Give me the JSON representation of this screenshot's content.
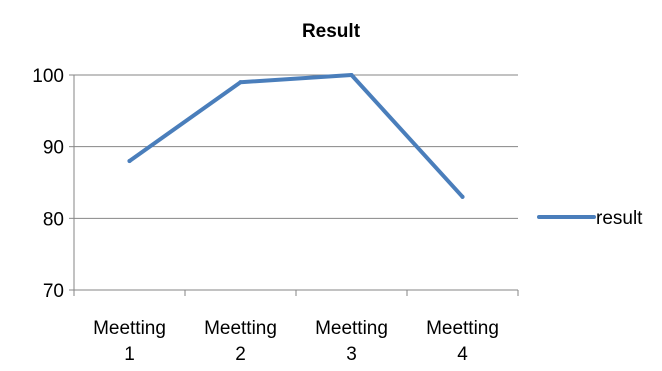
{
  "chart_data": {
    "type": "line",
    "title": "Result",
    "categories": [
      [
        "Meetting",
        "1"
      ],
      [
        "Meetting",
        "2"
      ],
      [
        "Meetting",
        "3"
      ],
      [
        "Meetting",
        "4"
      ]
    ],
    "series": [
      {
        "name": "result",
        "values": [
          88,
          99,
          100,
          83
        ],
        "color": "#4A7EBB"
      }
    ],
    "ylim": [
      70,
      100
    ],
    "yticks": [
      "70",
      "80",
      "90",
      "100"
    ],
    "grid": true,
    "gridColor": "#868686",
    "legend": "right"
  }
}
